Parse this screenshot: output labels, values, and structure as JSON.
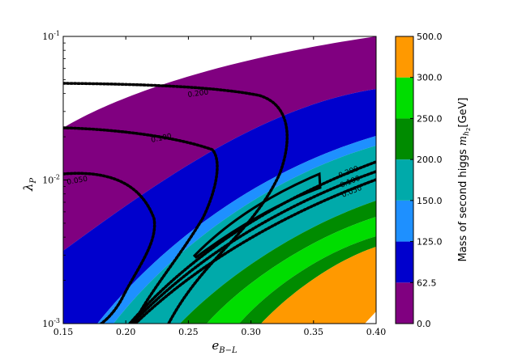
{
  "chart_data": {
    "type": "contour",
    "xlabel": "e",
    "xlabel_sub": "B−L",
    "ylabel": "λ",
    "ylabel_sub": "P",
    "xlim": [
      0.15,
      0.4
    ],
    "ylim": [
      0.001,
      0.1
    ],
    "yscale": "log",
    "x_ticks": [
      "0.15",
      "0.20",
      "0.25",
      "0.30",
      "0.35",
      "0.40"
    ],
    "y_ticks": [
      {
        "base": "10",
        "exp": "-3",
        "value": 0.001
      },
      {
        "base": "10",
        "exp": "-2",
        "value": 0.01
      },
      {
        "base": "10",
        "exp": "-1",
        "value": 0.1
      }
    ],
    "colorbar": {
      "label": "Mass of second higgs",
      "label_math": "m",
      "label_math_sub": "h",
      "label_math_subsub": "2",
      "label_unit": "[GeV]",
      "ticks": [
        "0.0",
        "62.5",
        "125.0",
        "150.0",
        "200.0",
        "250.0",
        "300.0",
        "500.0"
      ],
      "levels": [
        0,
        62.5,
        125,
        150,
        200,
        250,
        300,
        500
      ],
      "colors": [
        "#800080",
        "#0000cd",
        "#1e90ff",
        "#00aaaa",
        "#008b00",
        "#00dd00",
        "#ff9900"
      ]
    },
    "filled_bands": [
      {
        "range": "0.0-62.5",
        "color": "#800080"
      },
      {
        "range": "62.5-125.0",
        "color": "#0000cd"
      },
      {
        "range": "125.0-150.0",
        "color": "#1e90ff"
      },
      {
        "range": "150.0-200.0",
        "color": "#00aaaa"
      },
      {
        "range": "200.0-250.0",
        "color": "#008b00"
      },
      {
        "range": "250.0-300.0",
        "color": "#00dd00"
      },
      {
        "range": "300.0-500.0",
        "color": "#ff9900"
      }
    ],
    "contour_labels_left": [
      "0.200",
      "0.100",
      "0.050"
    ],
    "contour_labels_right": [
      "0.200",
      "0.100",
      "0.050"
    ]
  }
}
